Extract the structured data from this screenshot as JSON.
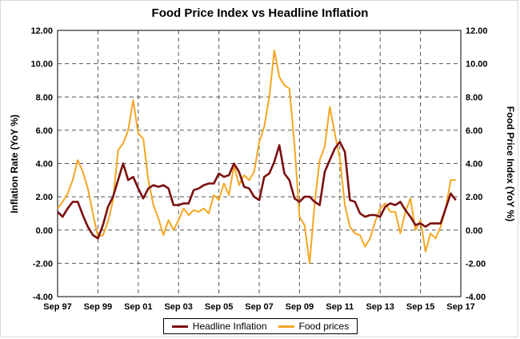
{
  "chart_data": {
    "type": "line",
    "title": "Food Price Index vs Headline Inflation",
    "ylabel_left": "Inflation Rate (YoY %)",
    "ylabel_right": "Food Price Index (YoY %)",
    "xlabel": "",
    "ylim_left": [
      -4,
      12
    ],
    "ylim_right": [
      -4,
      12
    ],
    "yticks_left": [
      "12.00",
      "10.00",
      "8.00",
      "6.00",
      "4.00",
      "2.00",
      "0.00",
      "-2.00",
      "-4.00"
    ],
    "yticks_right": [
      "12.00",
      "10.00",
      "8.00",
      "6.00",
      "4.00",
      "2.00",
      "0.00",
      "-2.00",
      "-4.00"
    ],
    "xticks": [
      "Sep 97",
      "Sep 99",
      "Sep 01",
      "Sep 03",
      "Sep 05",
      "Sep 07",
      "Sep 09",
      "Sep 11",
      "Sep 13",
      "Sep 15",
      "Sep 17"
    ],
    "xlim": [
      1997.67,
      2017.67
    ],
    "grid": true,
    "legend": "bottom",
    "series": [
      {
        "name": "Headline Inflation",
        "color": "#7b1010",
        "axis": "left",
        "points": [
          [
            1997.67,
            1.1
          ],
          [
            1997.92,
            0.8
          ],
          [
            1998.17,
            1.3
          ],
          [
            1998.42,
            1.7
          ],
          [
            1998.67,
            1.7
          ],
          [
            1998.92,
            0.9
          ],
          [
            1999.17,
            0.2
          ],
          [
            1999.42,
            -0.3
          ],
          [
            1999.67,
            -0.5
          ],
          [
            1999.92,
            0.3
          ],
          [
            2000.17,
            1.4
          ],
          [
            2000.42,
            2.0
          ],
          [
            2000.67,
            3.0
          ],
          [
            2000.92,
            4.0
          ],
          [
            2001.17,
            3.0
          ],
          [
            2001.42,
            3.2
          ],
          [
            2001.67,
            2.5
          ],
          [
            2001.92,
            1.9
          ],
          [
            2002.17,
            2.5
          ],
          [
            2002.42,
            2.7
          ],
          [
            2002.67,
            2.6
          ],
          [
            2002.92,
            2.7
          ],
          [
            2003.17,
            2.5
          ],
          [
            2003.42,
            1.5
          ],
          [
            2003.67,
            1.5
          ],
          [
            2003.92,
            1.6
          ],
          [
            2004.17,
            1.6
          ],
          [
            2004.42,
            2.4
          ],
          [
            2004.67,
            2.5
          ],
          [
            2004.92,
            2.7
          ],
          [
            2005.17,
            2.8
          ],
          [
            2005.42,
            2.8
          ],
          [
            2005.67,
            3.4
          ],
          [
            2005.92,
            3.2
          ],
          [
            2006.17,
            3.3
          ],
          [
            2006.42,
            4.0
          ],
          [
            2006.67,
            3.5
          ],
          [
            2006.92,
            2.6
          ],
          [
            2007.17,
            2.5
          ],
          [
            2007.42,
            2.0
          ],
          [
            2007.67,
            1.8
          ],
          [
            2007.92,
            3.2
          ],
          [
            2008.17,
            3.4
          ],
          [
            2008.42,
            4.1
          ],
          [
            2008.67,
            5.1
          ],
          [
            2008.92,
            3.4
          ],
          [
            2009.17,
            3.0
          ],
          [
            2009.42,
            1.9
          ],
          [
            2009.67,
            1.7
          ],
          [
            2009.92,
            2.0
          ],
          [
            2010.17,
            2.0
          ],
          [
            2010.42,
            1.7
          ],
          [
            2010.67,
            1.5
          ],
          [
            2010.92,
            3.5
          ],
          [
            2011.17,
            4.2
          ],
          [
            2011.42,
            4.9
          ],
          [
            2011.67,
            5.3
          ],
          [
            2011.92,
            4.7
          ],
          [
            2012.17,
            1.8
          ],
          [
            2012.42,
            1.7
          ],
          [
            2012.67,
            1.0
          ],
          [
            2012.92,
            0.8
          ],
          [
            2013.17,
            0.9
          ],
          [
            2013.42,
            0.9
          ],
          [
            2013.67,
            0.8
          ],
          [
            2013.92,
            1.4
          ],
          [
            2014.17,
            1.6
          ],
          [
            2014.42,
            1.5
          ],
          [
            2014.67,
            1.7
          ],
          [
            2014.92,
            1.2
          ],
          [
            2015.17,
            0.8
          ],
          [
            2015.42,
            0.3
          ],
          [
            2015.67,
            0.4
          ],
          [
            2015.92,
            0.2
          ],
          [
            2016.17,
            0.4
          ],
          [
            2016.42,
            0.4
          ],
          [
            2016.67,
            0.4
          ],
          [
            2016.92,
            1.3
          ],
          [
            2017.17,
            2.2
          ],
          [
            2017.42,
            1.8
          ]
        ]
      },
      {
        "name": "Food prices",
        "color": "#f5a623",
        "axis": "right",
        "points": [
          [
            1997.67,
            1.3
          ],
          [
            1997.92,
            1.7
          ],
          [
            1998.17,
            2.2
          ],
          [
            1998.42,
            3.0
          ],
          [
            1998.67,
            4.2
          ],
          [
            1998.92,
            3.5
          ],
          [
            1999.17,
            2.5
          ],
          [
            1999.42,
            1.0
          ],
          [
            1999.67,
            -0.4
          ],
          [
            1999.92,
            -0.3
          ],
          [
            2000.17,
            0.5
          ],
          [
            2000.42,
            1.8
          ],
          [
            2000.67,
            4.8
          ],
          [
            2000.92,
            5.2
          ],
          [
            2001.17,
            6.0
          ],
          [
            2001.42,
            7.8
          ],
          [
            2001.67,
            5.8
          ],
          [
            2001.92,
            5.5
          ],
          [
            2002.17,
            3.0
          ],
          [
            2002.42,
            1.5
          ],
          [
            2002.67,
            0.7
          ],
          [
            2002.92,
            -0.3
          ],
          [
            2003.17,
            0.6
          ],
          [
            2003.42,
            0.0
          ],
          [
            2003.67,
            0.6
          ],
          [
            2003.92,
            1.3
          ],
          [
            2004.17,
            0.9
          ],
          [
            2004.42,
            1.2
          ],
          [
            2004.67,
            1.1
          ],
          [
            2004.92,
            1.3
          ],
          [
            2005.17,
            1.0
          ],
          [
            2005.42,
            2.1
          ],
          [
            2005.67,
            1.8
          ],
          [
            2005.92,
            2.8
          ],
          [
            2006.17,
            2.1
          ],
          [
            2006.42,
            3.9
          ],
          [
            2006.67,
            2.7
          ],
          [
            2006.92,
            3.3
          ],
          [
            2007.17,
            3.0
          ],
          [
            2007.42,
            3.5
          ],
          [
            2007.67,
            5.3
          ],
          [
            2007.92,
            6.2
          ],
          [
            2008.17,
            8.0
          ],
          [
            2008.42,
            10.8
          ],
          [
            2008.67,
            9.2
          ],
          [
            2008.92,
            8.7
          ],
          [
            2009.17,
            8.5
          ],
          [
            2009.42,
            5.1
          ],
          [
            2009.67,
            0.8
          ],
          [
            2009.92,
            0.3
          ],
          [
            2010.17,
            -2.0
          ],
          [
            2010.42,
            1.6
          ],
          [
            2010.67,
            4.2
          ],
          [
            2010.92,
            5.0
          ],
          [
            2011.17,
            7.4
          ],
          [
            2011.42,
            5.8
          ],
          [
            2011.67,
            4.3
          ],
          [
            2011.92,
            1.5
          ],
          [
            2012.17,
            0.2
          ],
          [
            2012.42,
            -0.2
          ],
          [
            2012.67,
            -0.3
          ],
          [
            2012.92,
            -1.0
          ],
          [
            2013.17,
            -0.5
          ],
          [
            2013.42,
            0.5
          ],
          [
            2013.67,
            1.3
          ],
          [
            2013.92,
            1.6
          ],
          [
            2014.17,
            1.1
          ],
          [
            2014.42,
            1.1
          ],
          [
            2014.67,
            -0.2
          ],
          [
            2014.92,
            1.1
          ],
          [
            2015.17,
            1.9
          ],
          [
            2015.42,
            0.0
          ],
          [
            2015.67,
            0.6
          ],
          [
            2015.92,
            -1.3
          ],
          [
            2016.17,
            -0.2
          ],
          [
            2016.42,
            -0.5
          ],
          [
            2016.67,
            0.2
          ],
          [
            2016.92,
            1.3
          ],
          [
            2017.17,
            3.0
          ],
          [
            2017.42,
            3.0
          ]
        ]
      }
    ]
  }
}
